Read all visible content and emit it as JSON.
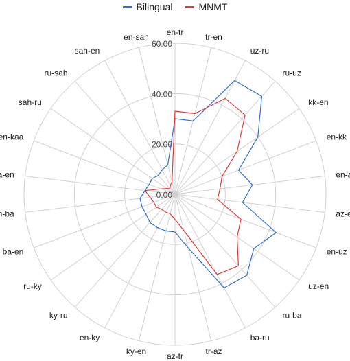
{
  "chart_data": {
    "type": "radar",
    "categories": [
      "en-tr",
      "tr-en",
      "uz-ru",
      "ru-uz",
      "kk-en",
      "en-kk",
      "en-az",
      "az-en",
      "en-uz",
      "uz-en",
      "ru-ba",
      "ba-ru",
      "tr-az",
      "az-tr",
      "ky-en",
      "en-ky",
      "ky-ru",
      "ru-ky",
      "ba-en",
      "en-ba",
      "kaa-en",
      "en-kaa",
      "sah-ru",
      "ru-sah",
      "sah-en",
      "en-sah"
    ],
    "series": [
      {
        "name": "Bilingual",
        "color": "#2f6fd6",
        "values": [
          30,
          30,
          51,
          52,
          40,
          27,
          31,
          27,
          43,
          38,
          43,
          42,
          22,
          15,
          15,
          15,
          15,
          14,
          14,
          14,
          12,
          11,
          11,
          10,
          11,
          12
        ]
      },
      {
        "name": "MNMT",
        "color": "#e03a3a",
        "values": [
          33,
          33,
          43,
          42,
          30,
          20,
          18,
          17,
          28,
          30,
          38,
          36,
          15,
          10,
          8,
          8,
          8,
          9,
          9,
          10,
          12,
          6,
          4,
          3,
          4,
          5
        ]
      }
    ],
    "rlim": [
      0,
      60
    ],
    "rticks": [
      "0.00",
      "20.00",
      "40.00",
      "60.00"
    ],
    "grid": true,
    "legend_position": "top"
  }
}
